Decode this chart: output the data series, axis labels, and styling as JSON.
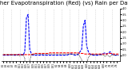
{
  "title": "Milwaukee Weather Evapotranspiration (Red) (vs) Rain per Day (Blue) (Inches)",
  "background_color": "#ffffff",
  "rain": [
    0.0,
    0.0,
    0.0,
    0.0,
    0.0,
    0.05,
    0.0,
    0.0,
    0.0,
    0.05,
    0.1,
    0.05,
    0.0,
    0.3,
    3.2,
    3.5,
    0.5,
    0.1,
    0.0,
    0.0,
    0.0,
    0.0,
    0.0,
    0.05,
    0.0,
    0.0,
    0.0,
    0.0,
    0.0,
    0.0,
    0.0,
    0.0,
    0.0,
    0.0,
    0.0,
    0.0,
    0.0,
    0.0,
    0.0,
    0.05,
    0.1,
    0.1,
    0.05,
    0.0,
    0.0,
    0.1,
    0.3,
    0.5,
    2.5,
    3.0,
    0.8,
    0.3,
    0.1,
    0.05,
    0.0,
    0.0,
    0.0,
    0.0,
    0.05,
    0.1,
    0.15,
    0.2,
    0.1,
    0.2,
    0.3,
    0.1,
    0.05,
    0.0,
    0.0,
    0.0
  ],
  "et": [
    0.05,
    0.05,
    0.05,
    0.05,
    0.05,
    0.05,
    0.05,
    0.05,
    0.05,
    0.05,
    0.05,
    0.05,
    0.05,
    0.05,
    0.05,
    0.05,
    0.05,
    0.05,
    0.1,
    0.15,
    0.15,
    0.15,
    0.15,
    0.15,
    0.15,
    0.15,
    0.15,
    0.15,
    0.2,
    0.2,
    0.2,
    0.2,
    0.2,
    0.2,
    0.2,
    0.2,
    0.2,
    0.2,
    0.2,
    0.2,
    0.2,
    0.2,
    0.2,
    0.2,
    0.2,
    0.2,
    0.15,
    0.15,
    0.15,
    0.1,
    0.1,
    0.1,
    0.1,
    0.1,
    0.1,
    0.1,
    0.1,
    0.1,
    0.1,
    0.1,
    0.1,
    0.1,
    0.1,
    0.15,
    0.15,
    0.15,
    0.1,
    0.1,
    0.1,
    0.1
  ],
  "deficit": [
    0.05,
    0.05,
    0.05,
    0.05,
    0.05,
    0.0,
    0.05,
    0.05,
    0.05,
    0.0,
    -0.05,
    0.0,
    0.05,
    -0.25,
    -3.15,
    -3.45,
    -0.45,
    0.05,
    0.05,
    0.1,
    0.1,
    0.1,
    0.1,
    0.1,
    0.1,
    0.1,
    0.1,
    0.1,
    0.1,
    0.1,
    0.1,
    0.1,
    0.1,
    0.1,
    0.1,
    0.1,
    0.1,
    0.1,
    0.1,
    0.1,
    0.1,
    0.1,
    0.1,
    0.1,
    0.1,
    0.1,
    -0.15,
    -0.35,
    -2.35,
    -2.9,
    -0.7,
    -0.2,
    0.0,
    0.05,
    0.05,
    0.05,
    0.05,
    0.05,
    0.05,
    0.0,
    0.0,
    -0.1,
    0.0,
    -0.05,
    -0.15,
    0.05,
    0.0,
    0.0,
    0.0,
    0.0
  ],
  "months": [
    5,
    5,
    5,
    5,
    5,
    5,
    5,
    5,
    5,
    5,
    5,
    5,
    5,
    5,
    5,
    5,
    5,
    5,
    5,
    5,
    5,
    5,
    5,
    5,
    5,
    5,
    5,
    5,
    5,
    5,
    5,
    6,
    6,
    6,
    6,
    6,
    6,
    6,
    6,
    6,
    6,
    6,
    6,
    6,
    6,
    6,
    6,
    6,
    6,
    6,
    6,
    6,
    6,
    6,
    6,
    6,
    6,
    6,
    6,
    6,
    6,
    7,
    7,
    7,
    7,
    7,
    7,
    7,
    7,
    7
  ],
  "days": [
    1,
    2,
    3,
    4,
    5,
    6,
    7,
    8,
    9,
    10,
    11,
    12,
    13,
    14,
    15,
    16,
    17,
    18,
    19,
    20,
    21,
    22,
    23,
    24,
    25,
    26,
    27,
    28,
    29,
    30,
    31,
    1,
    2,
    3,
    4,
    5,
    6,
    7,
    8,
    9,
    10,
    11,
    12,
    13,
    14,
    15,
    16,
    17,
    18,
    19,
    20,
    21,
    22,
    23,
    24,
    25,
    26,
    27,
    28,
    29,
    30,
    1,
    2,
    3,
    4,
    5,
    6,
    7,
    8,
    9
  ],
  "ylim": [
    -0.5,
    4.0
  ],
  "yticks": [
    0.0,
    0.5,
    1.0,
    1.5,
    2.0,
    2.5,
    3.0,
    3.5,
    4.0
  ],
  "rain_color": "#0000ff",
  "et_color": "#ff0000",
  "deficit_color": "#000000",
  "grid_color": "#aaaaaa",
  "grid_step": 5,
  "xtick_step": 2,
  "title_fontsize": 5.0
}
